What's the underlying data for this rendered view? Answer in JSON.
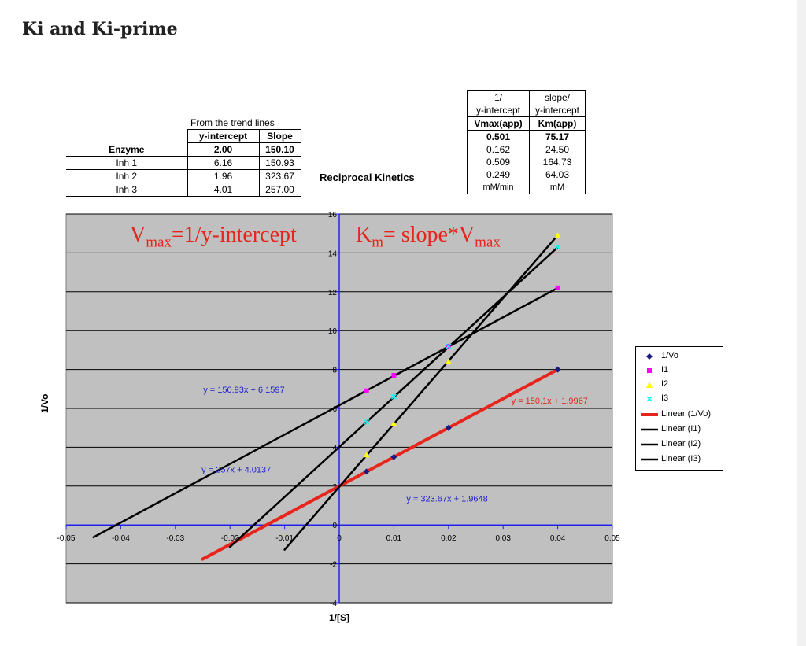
{
  "page": {
    "title": "Ki and Ki-prime"
  },
  "trend_table": {
    "caption": "From the trend lines",
    "col_intercept": "y-intercept",
    "col_slope": "Slope",
    "row_header": "Enzyme",
    "rows": [
      {
        "label": "",
        "intercept": "2.00",
        "slope": "150.10",
        "bold": true
      },
      {
        "label": "Inh 1",
        "intercept": "6.16",
        "slope": "150.93",
        "bold": false
      },
      {
        "label": "Inh 2",
        "intercept": "1.96",
        "slope": "323.67",
        "bold": false
      },
      {
        "label": "Inh 3",
        "intercept": "4.01",
        "slope": "257.00",
        "bold": false
      }
    ]
  },
  "kinetics_table": {
    "title": "Reciprocal Kinetics",
    "head1_a": "1/",
    "head1_b": "y-intercept",
    "head2_a": "slope/",
    "head2_b": "y-intercept",
    "col_vmax": "Vmax(app)",
    "col_km": "Km(app)",
    "rows": [
      {
        "vmax": "0.501",
        "km": "75.17",
        "bold": true
      },
      {
        "vmax": "0.162",
        "km": "24.50",
        "bold": false
      },
      {
        "vmax": "0.509",
        "km": "164.73",
        "bold": false
      },
      {
        "vmax": "0.249",
        "km": "64.03",
        "bold": false
      }
    ],
    "unit_vmax": "mM/min",
    "unit_km": "mM"
  },
  "annotations": {
    "vmax_v": "V",
    "vmax_sub": "max",
    "vmax_rest": "=1/y-intercept",
    "km_k": "K",
    "km_sub": "m",
    "km_mid": "= slope*V",
    "km_sub2": "max"
  },
  "colors": {
    "plot_bg": "#c0c0c0",
    "axis": "#2222ee",
    "enzyme_line": "#e8251c",
    "inhibitor_line": "#000000",
    "annotation_red": "#e8251c",
    "equation_blue": "#2222cc",
    "vo_marker": "#1a1a80",
    "i1_marker": "#ff00ff",
    "i2_marker": "#ffff00",
    "i3_marker": "#00ffff"
  },
  "chart_data": {
    "type": "scatter",
    "xlabel": "1/[S]",
    "ylabel": "1/Vo",
    "xlim": [
      -0.05,
      0.05
    ],
    "ylim": [
      -4,
      16
    ],
    "x_ticks": [
      "-0.05",
      "-0.04",
      "-0.03",
      "-0.02",
      "-0.01",
      "0",
      "0.01",
      "0.02",
      "0.03",
      "0.04",
      "0.05"
    ],
    "y_ticks": [
      "-4",
      "-2",
      "0",
      "2",
      "4",
      "6",
      "8",
      "10",
      "12",
      "14",
      "16"
    ],
    "x_tick_values": [
      -0.05,
      -0.04,
      -0.03,
      -0.02,
      -0.01,
      0,
      0.01,
      0.02,
      0.03,
      0.04,
      0.05
    ],
    "y_tick_values": [
      -4,
      -2,
      0,
      2,
      4,
      6,
      8,
      10,
      12,
      14,
      16
    ],
    "grid": "horizontal",
    "legend_position": "right",
    "series": [
      {
        "name": "1/Vo",
        "marker": "diamond",
        "color": "#1a1a80",
        "x": [
          0.005,
          0.01,
          0.02,
          0.04
        ],
        "y": [
          2.75,
          3.5,
          5.0,
          8.0
        ]
      },
      {
        "name": "I1",
        "marker": "square",
        "color": "#ff00ff",
        "x": [
          0.005,
          0.01,
          0.02,
          0.04
        ],
        "y": [
          6.9,
          7.7,
          9.2,
          12.2
        ]
      },
      {
        "name": "I2",
        "marker": "triangle",
        "color": "#ffff00",
        "x": [
          0.005,
          0.01,
          0.02,
          0.04
        ],
        "y": [
          3.6,
          5.2,
          8.4,
          14.9
        ]
      },
      {
        "name": "I3",
        "marker": "x",
        "color": "#00ffff",
        "x": [
          0.005,
          0.01,
          0.02,
          0.04
        ],
        "y": [
          5.3,
          6.6,
          9.2,
          14.3
        ]
      }
    ],
    "trendlines": [
      {
        "name": "Linear (1/Vo)",
        "slope": 150.1,
        "intercept": 1.9967,
        "x_range": [
          -0.025,
          0.04
        ],
        "color": "#e8251c",
        "width": 4,
        "equation": "y = 150.1x + 1.9967",
        "eq_x": 0.0315,
        "eq_y": 6.25
      },
      {
        "name": "Linear (I1)",
        "slope": 150.93,
        "intercept": 6.1597,
        "x_range": [
          -0.045,
          0.04
        ],
        "color": "#000000",
        "width": 2.5,
        "equation": "y = 150.93x + 6.1597",
        "eq_x": -0.01,
        "eq_y": 6.8
      },
      {
        "name": "Linear (I2)",
        "slope": 323.67,
        "intercept": 1.9648,
        "x_range": [
          -0.01,
          0.04
        ],
        "color": "#000000",
        "width": 2.5,
        "equation": "y = 323.67x + 1.9648",
        "eq_x": 0.0123,
        "eq_y": 1.2
      },
      {
        "name": "Linear (I3)",
        "slope": 257,
        "intercept": 4.0137,
        "x_range": [
          -0.02,
          0.04
        ],
        "color": "#000000",
        "width": 2.5,
        "equation": "y = 257x + 4.0137",
        "eq_x": -0.0125,
        "eq_y": 2.7
      }
    ]
  }
}
